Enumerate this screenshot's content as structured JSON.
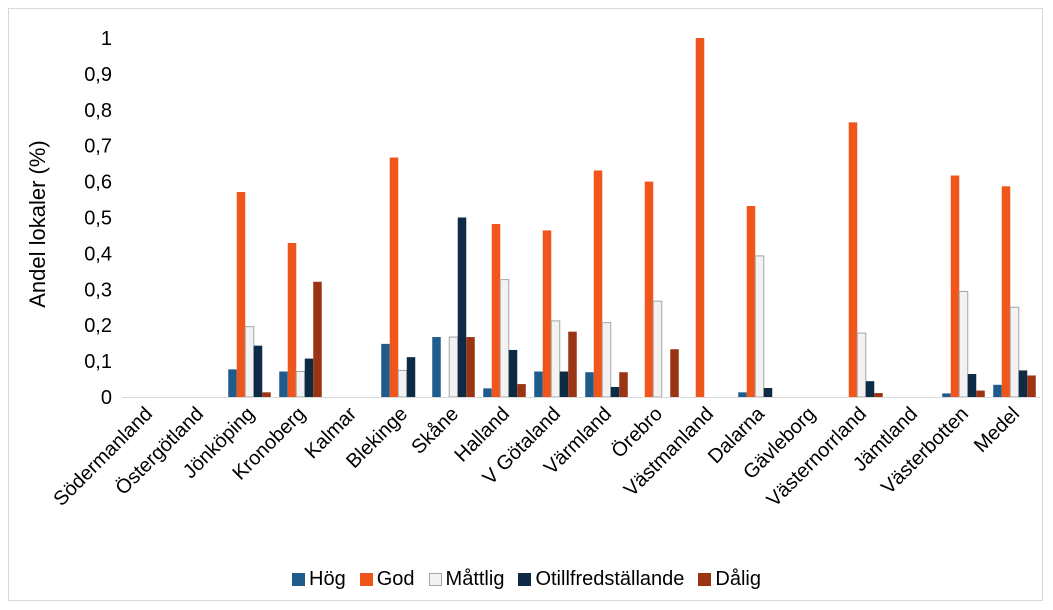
{
  "chart_data": {
    "type": "bar",
    "title": "",
    "xlabel": "",
    "ylabel": "Andel lokaler (%)",
    "ylim": [
      0,
      1
    ],
    "yticks": [
      "0",
      "0,1",
      "0,2",
      "0,3",
      "0,4",
      "0,5",
      "0,6",
      "0,7",
      "0,8",
      "0,9",
      "1"
    ],
    "grid": false,
    "legend_position": "bottom",
    "categories": [
      "Södermanland",
      "Östergötland",
      "Jönköping",
      "Kronoberg",
      "Kalmar",
      "Blekinge",
      "Skåne",
      "Halland",
      "V Götaland",
      "Värmland",
      "Örebro",
      "Västmanland",
      "Dalarna",
      "Gävleborg",
      "Västernorrland",
      "Jämtland",
      "Västerbotten",
      "Medel"
    ],
    "series": [
      {
        "name": "Hög",
        "color": "#1f5c8b",
        "values": [
          0,
          0,
          0.077,
          0.071,
          0,
          0.148,
          0.167,
          0.024,
          0.071,
          0.069,
          0,
          0,
          0.013,
          0,
          0,
          0,
          0.01,
          0.034
        ]
      },
      {
        "name": "God",
        "color": "#f0561c",
        "values": [
          0,
          0,
          0.571,
          0.429,
          0,
          0.667,
          0,
          0.482,
          0.464,
          0.631,
          0.6,
          1.0,
          0.532,
          0,
          0.765,
          0,
          0.617,
          0.587
        ]
      },
      {
        "name": "Måttlig",
        "color": "#f2f2f2",
        "values": [
          0,
          0,
          0.196,
          0.071,
          0,
          0.074,
          0.167,
          0.327,
          0.212,
          0.207,
          0.267,
          0,
          0.393,
          0,
          0.178,
          0,
          0.294,
          0.25
        ]
      },
      {
        "name": "Otillfredställande",
        "color": "#0d2b45",
        "values": [
          0,
          0,
          0.143,
          0.107,
          0,
          0.111,
          0.5,
          0.131,
          0.071,
          0.028,
          0,
          0,
          0.025,
          0,
          0.044,
          0,
          0.064,
          0.074
        ]
      },
      {
        "name": "Dålig",
        "color": "#9a3412",
        "values": [
          0,
          0,
          0.013,
          0.321,
          0,
          0,
          0.167,
          0.036,
          0.182,
          0.069,
          0.133,
          0,
          0,
          0,
          0.011,
          0,
          0.018,
          0.06
        ]
      }
    ]
  }
}
